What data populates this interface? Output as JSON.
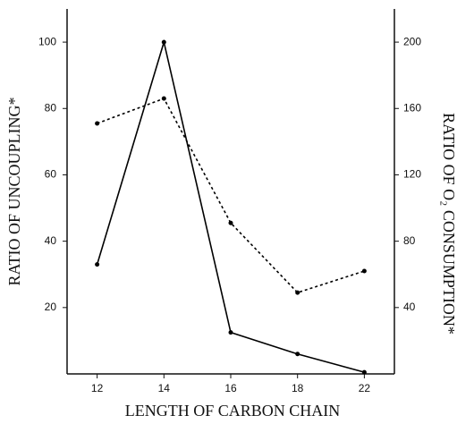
{
  "chart_data": {
    "type": "line",
    "x_label": "LENGTH OF CARBON CHAIN",
    "y_label": "RATIO OF UNCOUPLING*",
    "y2_label": "RATIO OF O₂ CONSUMPTION*",
    "categories": [
      "12",
      "14",
      "16",
      "18",
      "22"
    ],
    "series": [
      {
        "color": "#000000",
        "line_style": "solid",
        "values": [
          33,
          100,
          12.5,
          6,
          0.5
        ]
      },
      {
        "color": "#000000",
        "line_style": "dashed",
        "axis": "y2",
        "values": [
          151,
          166,
          91,
          49,
          62
        ]
      }
    ],
    "ylim": [
      0,
      110
    ],
    "yticks": [
      20,
      40,
      60,
      80,
      100
    ],
    "y2lim": [
      0,
      220
    ],
    "y2ticks": [
      40,
      80,
      120,
      160,
      200
    ],
    "grid": false
  }
}
